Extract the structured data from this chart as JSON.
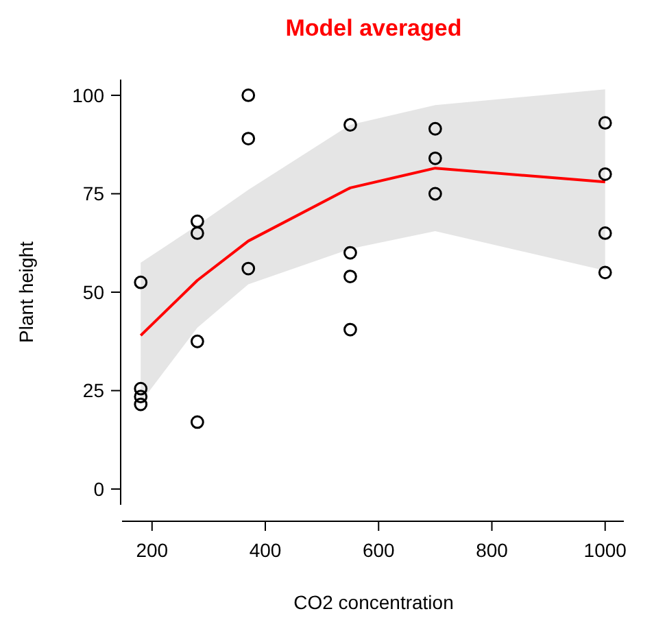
{
  "chart_data": {
    "type": "line",
    "title": "Model averaged",
    "xlabel": "CO2 concentration",
    "ylabel": "Plant height",
    "xlim": [
      147,
      1033
    ],
    "ylim": [
      -4,
      104
    ],
    "xticks": [
      200,
      400,
      600,
      800,
      1000
    ],
    "yticks": [
      0,
      25,
      50,
      75,
      100
    ],
    "grid": false,
    "series": [
      {
        "type": "scatter",
        "color": "#000000",
        "marker": "circle",
        "x": [
          180,
          180,
          180,
          180,
          280,
          280,
          280,
          280,
          370,
          370,
          370,
          550,
          550,
          550,
          550,
          700,
          700,
          700,
          1000,
          1000,
          1000,
          1000
        ],
        "values": [
          52.5,
          25.5,
          23.5,
          21.5,
          68,
          65,
          37.5,
          17,
          100,
          89,
          56,
          92.5,
          60,
          54,
          40.5,
          91.5,
          84,
          75,
          93,
          80,
          65,
          55
        ]
      },
      {
        "color": "#ff0000",
        "marker": "none",
        "line_style": "solid",
        "x": [
          180,
          280,
          370,
          550,
          700,
          1000
        ],
        "values": [
          39,
          53,
          63,
          76.5,
          81.5,
          78
        ],
        "lower": [
          22,
          41,
          52,
          61,
          65.5,
          55.5
        ],
        "upper": [
          57.5,
          67,
          76,
          92.5,
          97.5,
          101.5
        ]
      }
    ]
  }
}
